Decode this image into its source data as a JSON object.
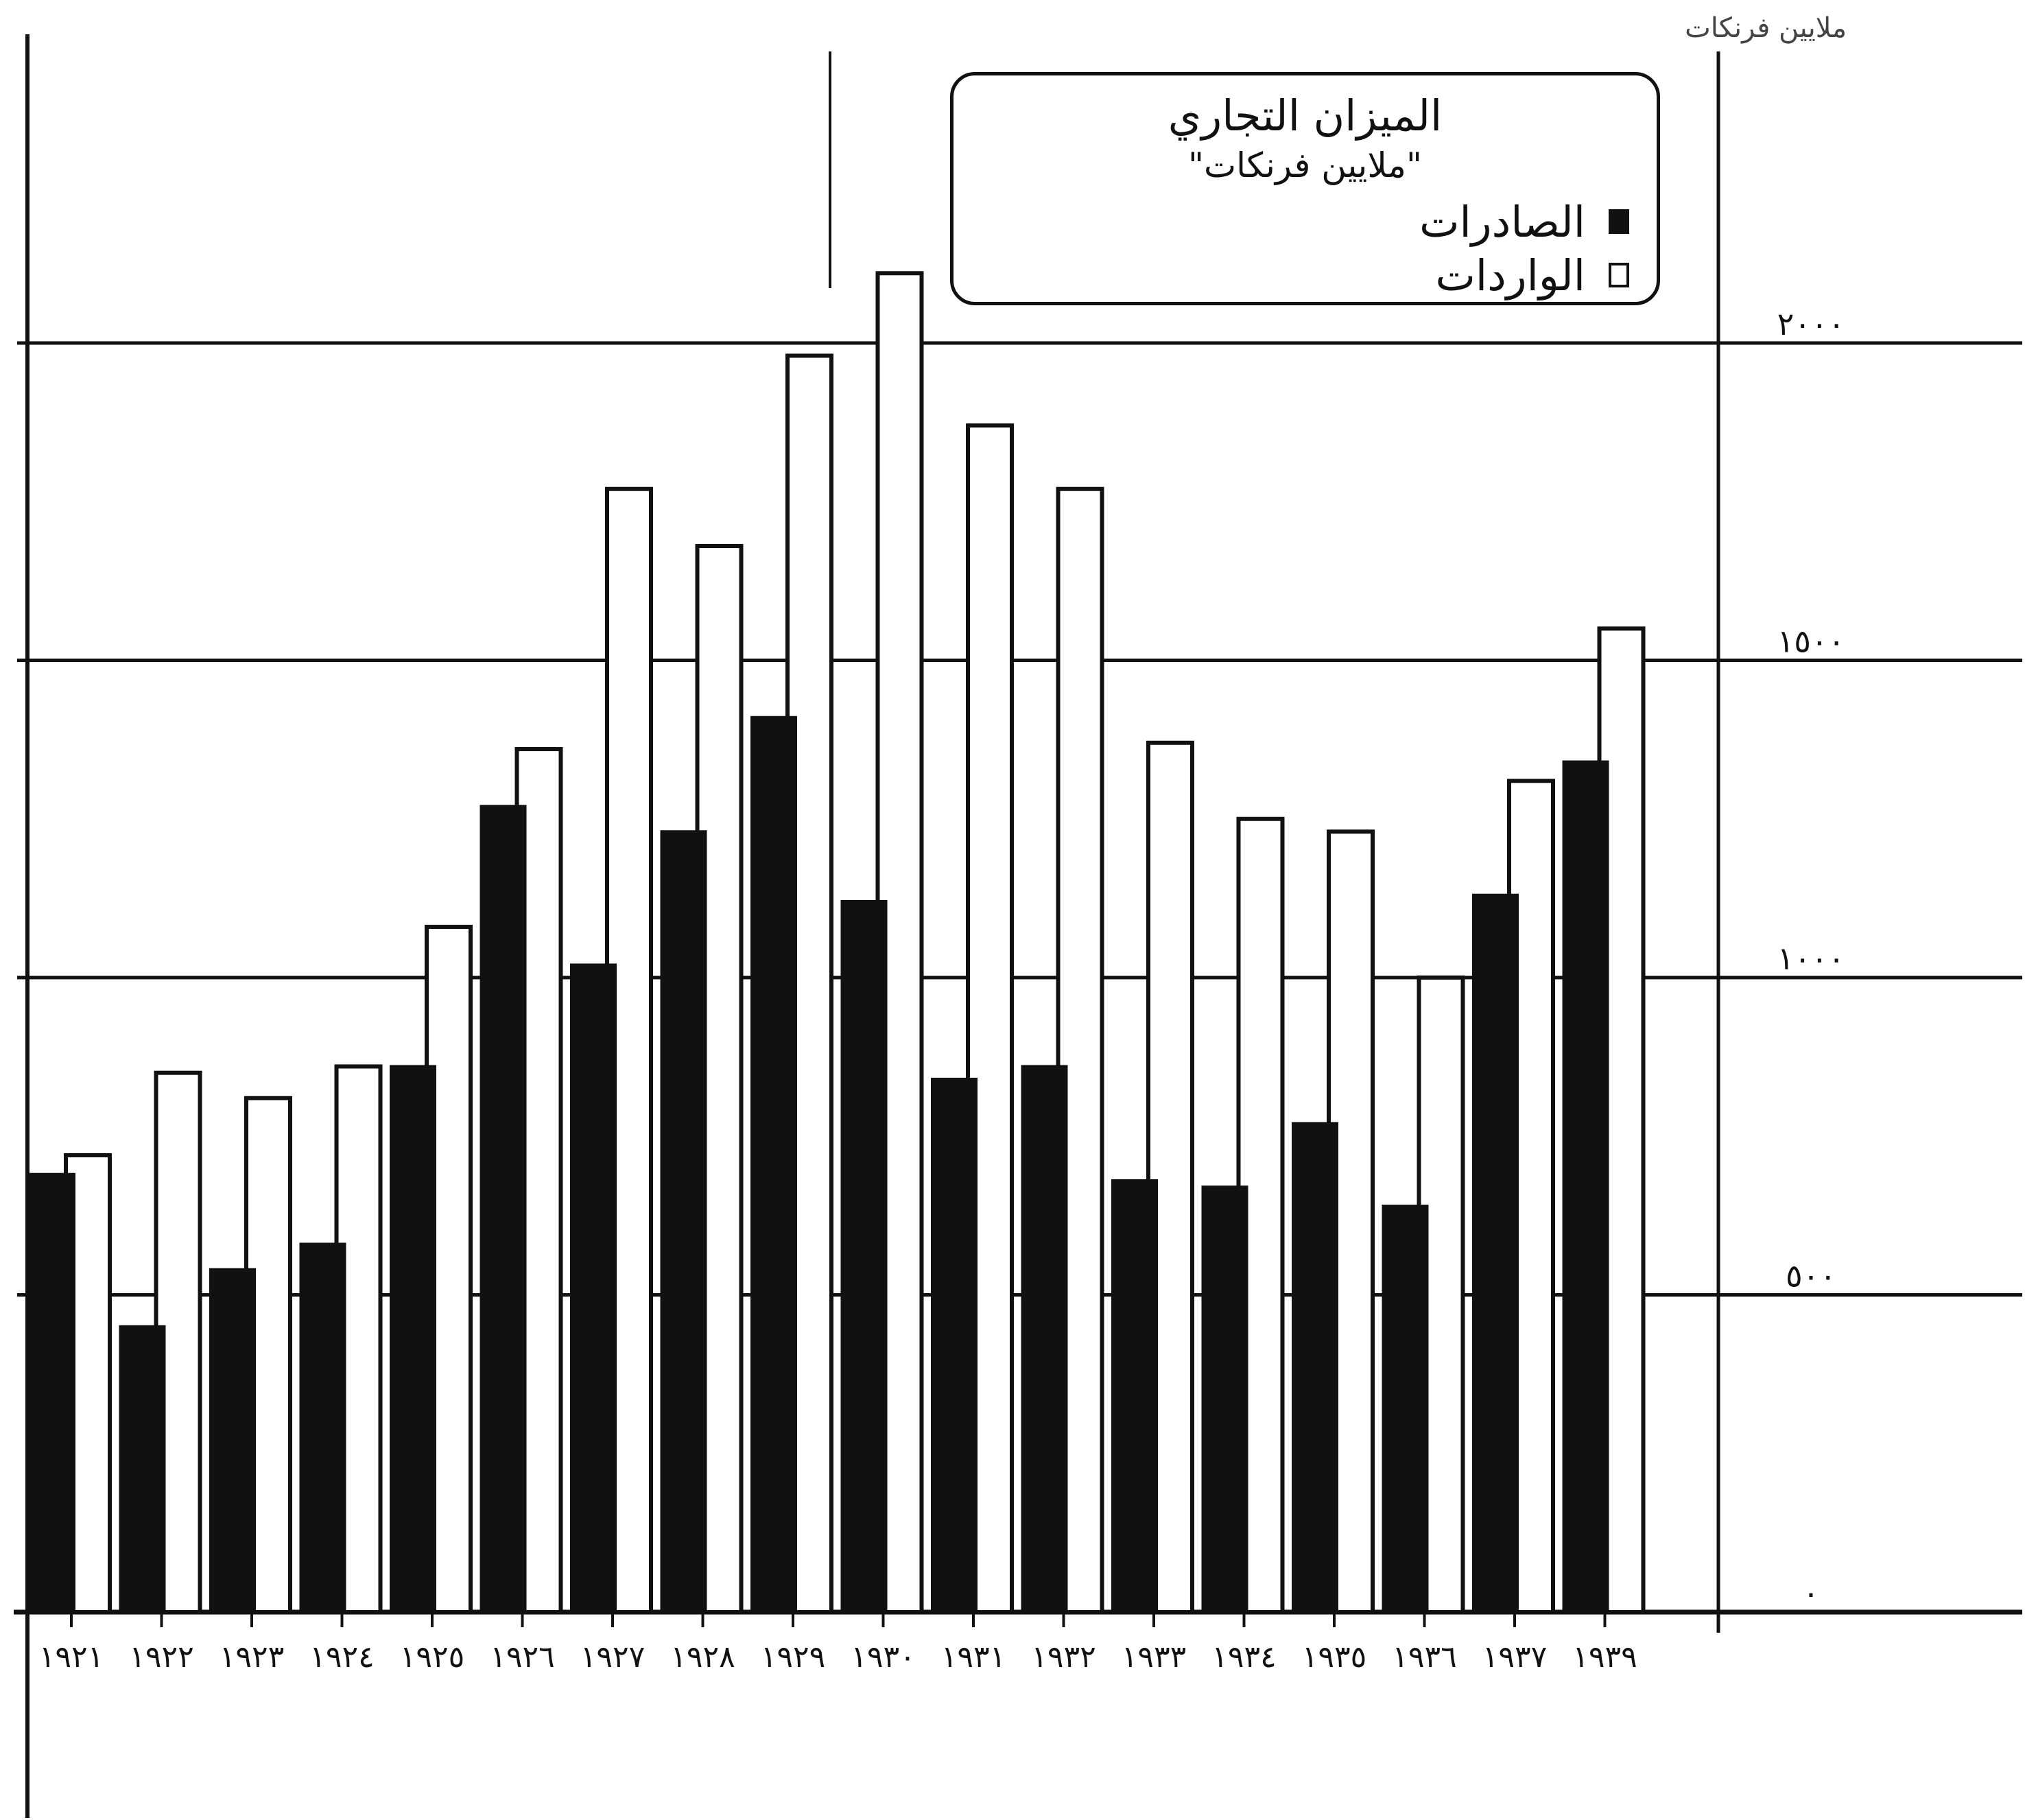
{
  "chart_data": {
    "type": "bar",
    "title": "الميزان التجاري",
    "subtitle": "\"ملايين فرنكات\"",
    "unit_label": "ملايين فرنكات",
    "categories": [
      "١٩٢١",
      "١٩٢٢",
      "١٩٢٣",
      "١٩٢٤",
      "١٩٢٥",
      "١٩٢٦",
      "١٩٢٧",
      "١٩٢٨",
      "١٩٢٩",
      "١٩٣٠",
      "١٩٣١",
      "١٩٣٢",
      "١٩٣٣",
      "١٩٣٤",
      "١٩٣٥",
      "١٩٣٦",
      "١٩٣٧",
      "١٩٣٩"
    ],
    "series": [
      {
        "name": "الواردات",
        "fill": "white",
        "values": [
          720,
          850,
          810,
          860,
          1080,
          1360,
          1770,
          1680,
          1980,
          2110,
          1870,
          1770,
          1370,
          1250,
          1230,
          1000,
          1310,
          1550
        ]
      },
      {
        "name": "الصادرات",
        "fill": "black",
        "values": [
          690,
          450,
          540,
          580,
          860,
          1270,
          1020,
          1230,
          1410,
          1120,
          840,
          860,
          680,
          670,
          770,
          640,
          1130,
          1340
        ]
      }
    ],
    "yticks": [
      "٠",
      "٥٠٠",
      "١٠٠٠",
      "١٥٠٠",
      "٢٠٠٠"
    ],
    "ytick_values": [
      0,
      500,
      1000,
      1500,
      2000
    ],
    "ylim": [
      0,
      2250
    ],
    "grid": true,
    "legend_position": "top-center",
    "colors": {
      "exports": "#111111",
      "imports": "#ffffff",
      "axis": "#111111"
    }
  }
}
